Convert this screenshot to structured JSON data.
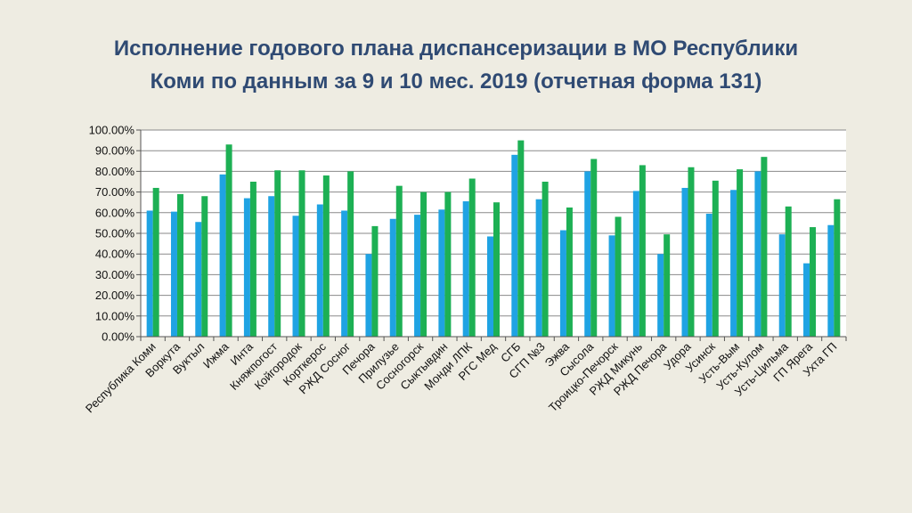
{
  "slide": {
    "title_line1": "Исполнение годового плана диспансеризации в МО Республики",
    "title_line2": "Коми по данным за 9 и 10 мес. 2019 (отчетная форма 131)"
  },
  "chart_data": {
    "type": "bar",
    "title": "",
    "xlabel": "",
    "ylabel": "",
    "ylim": [
      0,
      100
    ],
    "yticks": [
      "0.00%",
      "10.00%",
      "20.00%",
      "30.00%",
      "40.00%",
      "50.00%",
      "60.00%",
      "70.00%",
      "80.00%",
      "90.00%",
      "100.00%"
    ],
    "grid": true,
    "legend": "none",
    "categories": [
      "Республика Коми",
      "Воркута",
      "Вуктыл",
      "Ижма",
      "Инта",
      "Княжпогост",
      "Койгородок",
      "Корткерос",
      "РЖД Сосног",
      "Печора",
      "Прилузье",
      "Сосногорск",
      "Сыктывдин",
      "Монди ЛПК",
      "РГС Мед",
      "СГБ",
      "СГП №3",
      "Эжва",
      "Сысола",
      "Троицко-Печорск",
      "РЖД Микунь",
      "РЖД Печора",
      "Удора",
      "Усинск",
      "Усть-Вым",
      "Усть-Кулом",
      "Усть-Цильма",
      "ГП Ярега",
      "Ухта ГП"
    ],
    "series": [
      {
        "color": "#1fa3e3",
        "values": [
          61,
          60.5,
          55.5,
          78.5,
          67,
          68,
          58.5,
          64,
          61,
          40,
          57,
          59,
          61.5,
          65.5,
          48.5,
          88,
          66.5,
          51.5,
          80,
          49,
          70.5,
          40,
          72,
          59.5,
          71,
          80,
          49.5,
          35.5,
          54
        ]
      },
      {
        "color": "#1db054",
        "values": [
          72,
          69,
          68,
          93,
          75,
          80.5,
          80.5,
          78,
          80,
          53.5,
          73,
          70,
          70,
          76.5,
          65,
          95,
          75,
          62.5,
          86,
          58,
          83,
          49.5,
          82,
          75.5,
          81,
          87,
          63,
          53,
          66.5
        ]
      }
    ]
  }
}
